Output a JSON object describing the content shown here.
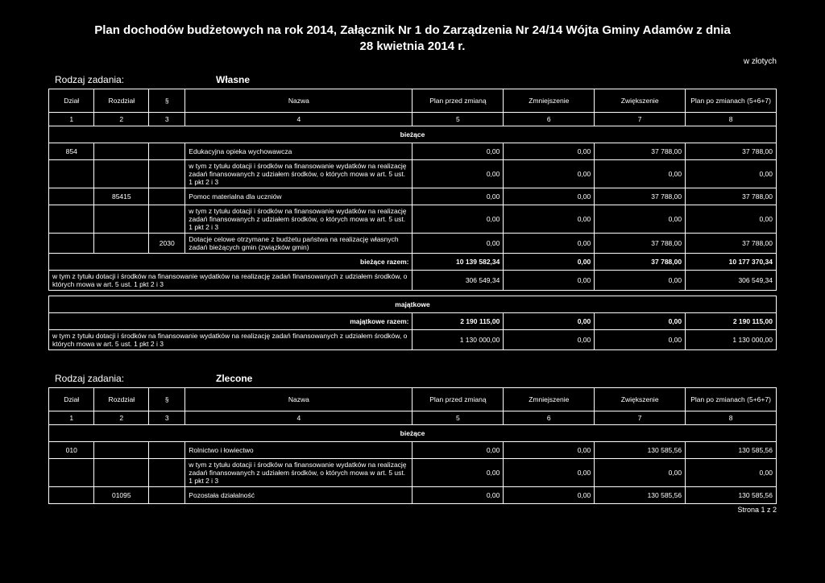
{
  "title_line1": "Plan dochodów budżetowych na rok 2014,   Załącznik Nr 1 do Zarządzenia Nr 24/14  Wójta Gminy Adamów z dnia",
  "title_line2": "28 kwietnia 2014 r.",
  "unit": "w złotych",
  "task_label": "Rodzaj zadania:",
  "task1": "Własne",
  "task2": "Zlecone",
  "headers": {
    "dzial": "Dział",
    "rozdzial": "Rozdział",
    "par": "§",
    "nazwa": "Nazwa",
    "przed": "Plan przed zmianą",
    "zmn": "Zmniejszenie",
    "zwi": "Zwiększenie",
    "po": "Plan po zmianach (5+6+7)"
  },
  "colnums": {
    "c1": "1",
    "c2": "2",
    "c3": "3",
    "c4": "4",
    "c5": "5",
    "c6": "6",
    "c7": "7",
    "c8": "8"
  },
  "sec_biez": "bieżące",
  "sec_maj": "majątkowe",
  "wlasne_rows": [
    {
      "dz": "854",
      "roz": "",
      "par": "",
      "naz": "Edukacyjna opieka wychowawcza",
      "v": [
        "0,00",
        "0,00",
        "37 788,00",
        "37 788,00"
      ]
    },
    {
      "dz": "",
      "roz": "",
      "par": "",
      "naz": "w tym z tytułu dotacji i środków na finansowanie wydatków na realizację zadań finansowanych z udziałem środków, o których mowa w art. 5 ust. 1 pkt 2 i 3",
      "v": [
        "0,00",
        "0,00",
        "0,00",
        "0,00"
      ]
    },
    {
      "dz": "",
      "roz": "85415",
      "par": "",
      "naz": "Pomoc materialna dla uczniów",
      "v": [
        "0,00",
        "0,00",
        "37 788,00",
        "37 788,00"
      ]
    },
    {
      "dz": "",
      "roz": "",
      "par": "",
      "naz": "w tym z tytułu dotacji i środków na finansowanie wydatków na realizację zadań finansowanych z udziałem środków, o których mowa w art. 5 ust. 1 pkt 2 i 3",
      "v": [
        "0,00",
        "0,00",
        "0,00",
        "0,00"
      ]
    },
    {
      "dz": "",
      "roz": "",
      "par": "2030",
      "naz": "Dotacje celowe otrzymane z budżetu państwa na realizację własnych zadań bieżących gmin (związków gmin)",
      "v": [
        "0,00",
        "0,00",
        "37 788,00",
        "37 788,00"
      ]
    }
  ],
  "biez_razem_label": "bieżące   razem:",
  "biez_razem": [
    "10 139 582,34",
    "0,00",
    "37 788,00",
    "10 177 370,34"
  ],
  "biez_sub_naz": "w tym z tytułu dotacji i środków na finansowanie wydatków na realizację zadań finansowanych z udziałem środków, o których mowa w art. 5 ust. 1 pkt 2 i 3",
  "biez_sub": [
    "306 549,34",
    "0,00",
    "0,00",
    "306 549,34"
  ],
  "maj_razem_label": "majątkowe   razem:",
  "maj_razem": [
    "2 190 115,00",
    "0,00",
    "0,00",
    "2 190 115,00"
  ],
  "maj_sub_naz": "w tym z tytułu dotacji i środków na finansowanie wydatków na realizację zadań finansowanych z udziałem środków, o których mowa w art. 5 ust. 1 pkt 2 i 3",
  "maj_sub": [
    "1 130 000,00",
    "0,00",
    "0,00",
    "1 130 000,00"
  ],
  "zlecone_rows": [
    {
      "dz": "010",
      "roz": "",
      "par": "",
      "naz": "Rolnictwo i łowiectwo",
      "v": [
        "0,00",
        "0,00",
        "130 585,56",
        "130 585,56"
      ]
    },
    {
      "dz": "",
      "roz": "",
      "par": "",
      "naz": "w tym z tytułu dotacji i środków na finansowanie wydatków na realizację zadań finansowanych z udziałem środków, o których mowa w art. 5 ust. 1 pkt 2 i 3",
      "v": [
        "0,00",
        "0,00",
        "0,00",
        "0,00"
      ]
    },
    {
      "dz": "",
      "roz": "01095",
      "par": "",
      "naz": "Pozostała działalność",
      "v": [
        "0,00",
        "0,00",
        "130 585,56",
        "130 585,56"
      ]
    }
  ],
  "footer": "Strona 1 z 2"
}
